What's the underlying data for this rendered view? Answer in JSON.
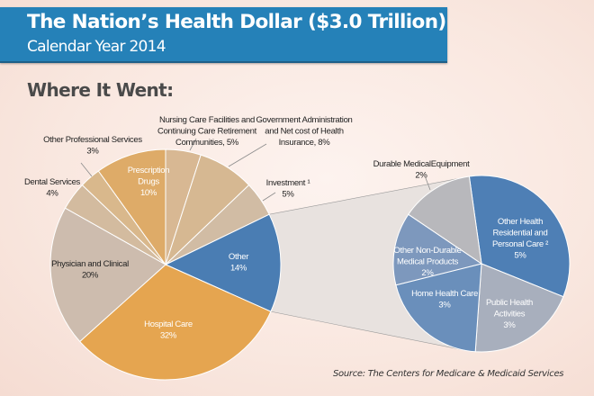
{
  "header": {
    "title": "The Nation’s Health Dollar ($3.0 Trillion)",
    "subtitle": "Calendar Year 2014"
  },
  "section_title": "Where It Went:",
  "source": "Source: The Centers for Medicare & Medicaid Services",
  "colors": {
    "header_bg": "#2581b8",
    "hospital": "#e5a550",
    "prescription": "#deab68",
    "tan_light": "#d8b893",
    "tan": "#d4bc9c",
    "gray_tan": "#cdbcae",
    "other_blue": "#4a7db3",
    "connector": "#e8e2df"
  },
  "chart_data": [
    {
      "type": "pie",
      "title": "Where It Went (main)",
      "total": "$3.0 Trillion",
      "slices": [
        {
          "key": "nursing",
          "label": [
            "Nursing Care Facilities and",
            "Continuing Care Retirement",
            "Communities, 5%"
          ],
          "value": 5,
          "color": "#d8b893",
          "label_color": "dark"
        },
        {
          "key": "govt",
          "label": [
            "Government Administration",
            "and Net cost of Health",
            "Insurance, 8%"
          ],
          "value": 8,
          "color": "#d6b892",
          "label_color": "dark"
        },
        {
          "key": "investment",
          "label": [
            "Investment ¹",
            "5%"
          ],
          "value": 5,
          "color": "#d1bca4",
          "label_color": "dark"
        },
        {
          "key": "other",
          "label": [
            "Other",
            "14%"
          ],
          "value": 14,
          "color": "#4a7db3",
          "label_color": "light"
        },
        {
          "key": "hospital",
          "label": [
            "Hospital Care",
            "32%"
          ],
          "value": 32,
          "color": "#e5a550",
          "label_color": "light"
        },
        {
          "key": "physician",
          "label": [
            "Physician and Clinical",
            "20%"
          ],
          "value": 20,
          "color": "#cdbcae",
          "label_color": "dark"
        },
        {
          "key": "dental",
          "label": [
            "Dental Services",
            "4%"
          ],
          "value": 4,
          "color": "#d3bb9f",
          "label_color": "dark"
        },
        {
          "key": "otherprof",
          "label": [
            "Other Professional Services",
            "3%"
          ],
          "value": 3,
          "color": "#d9b88c",
          "label_color": "dark"
        },
        {
          "key": "prescription",
          "label": [
            "Prescription",
            "Drugs",
            "10%"
          ],
          "value": 10,
          "color": "#deab68",
          "label_color": "light"
        }
      ]
    },
    {
      "type": "pie",
      "title": "Other (14%) breakdown",
      "slices": [
        {
          "key": "residential",
          "label": [
            "Other Health",
            "Residential and",
            "Personal Care ²",
            "5%"
          ],
          "value": 5,
          "color": "#4e7fb5",
          "label_color": "light"
        },
        {
          "key": "publichealth",
          "label": [
            "Public Health",
            "Activities",
            "3%"
          ],
          "value": 3,
          "color": "#a8afbd",
          "label_color": "light"
        },
        {
          "key": "homehealth",
          "label": [
            "Home Health Care",
            "3%"
          ],
          "value": 3,
          "color": "#6a8fbb",
          "label_color": "light"
        },
        {
          "key": "nondurable",
          "label": [
            "Other Non-Durable",
            "Medical Products",
            "2%"
          ],
          "value": 2,
          "color": "#7d98bd",
          "label_color": "light"
        },
        {
          "key": "durable",
          "label": [
            "Durable MedicalEquipment",
            "2%"
          ],
          "value": 2,
          "color": "#b8b8bc",
          "label_color": "dark"
        }
      ]
    }
  ]
}
